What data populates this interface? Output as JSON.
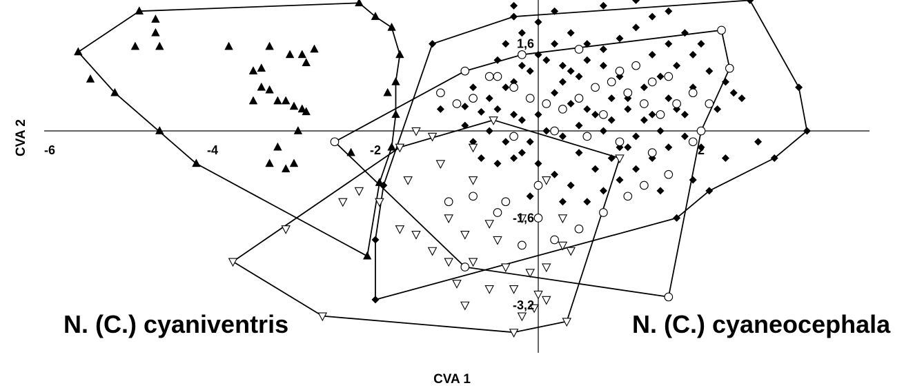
{
  "chart_data": {
    "type": "scatter",
    "xlabel": "CVA 1",
    "ylabel": "CVA 2",
    "xticks": [
      {
        "value": -6,
        "label": "-6"
      },
      {
        "value": -4,
        "label": "-4"
      },
      {
        "value": -2,
        "label": "-2"
      },
      {
        "value": 2,
        "label": "2"
      }
    ],
    "yticks": [
      {
        "value": 1.6,
        "label": "1,6"
      },
      {
        "value": -1.6,
        "label": "-1,6"
      },
      {
        "value": -3.2,
        "label": "-3,2"
      }
    ],
    "xlim": [
      -6.0,
      4.0
    ],
    "ylim": [
      -4.6,
      4.7
    ],
    "annotations": [
      {
        "text": "N. (C.) cyaniventris"
      },
      {
        "text": "N. (C.) cyaneocephala"
      }
    ],
    "series": [
      {
        "marker": "triangle-filled",
        "color": "#000000",
        "hull": [
          [
            -5.65,
            1.45
          ],
          [
            -4.9,
            2.2
          ],
          [
            -2.2,
            2.35
          ],
          [
            -2.0,
            2.1
          ],
          [
            -1.8,
            1.9
          ],
          [
            -1.7,
            1.4
          ],
          [
            -1.75,
            0.9
          ],
          [
            -1.75,
            0.3
          ],
          [
            -1.8,
            -0.3
          ],
          [
            -1.95,
            -0.95
          ],
          [
            -2.1,
            -2.3
          ],
          [
            -4.2,
            -0.6
          ],
          [
            -5.2,
            0.7
          ]
        ],
        "points": [
          [
            -5.65,
            1.45
          ],
          [
            -4.9,
            2.2
          ],
          [
            -2.2,
            2.35
          ],
          [
            -2.0,
            2.1
          ],
          [
            -1.8,
            1.9
          ],
          [
            -1.7,
            1.4
          ],
          [
            -1.75,
            0.9
          ],
          [
            -1.75,
            0.3
          ],
          [
            -1.8,
            -0.3
          ],
          [
            -1.95,
            -0.95
          ],
          [
            -2.1,
            -2.3
          ],
          [
            -4.2,
            -0.6
          ],
          [
            -5.2,
            0.7
          ],
          [
            -4.7,
            2.05
          ],
          [
            -4.7,
            1.8
          ],
          [
            -4.65,
            1.55
          ],
          [
            -4.95,
            1.55
          ],
          [
            -4.65,
            0.0
          ],
          [
            -5.5,
            0.95
          ],
          [
            -3.8,
            1.55
          ],
          [
            -3.3,
            1.55
          ],
          [
            -3.4,
            1.15
          ],
          [
            -3.05,
            1.4
          ],
          [
            -2.9,
            1.4
          ],
          [
            -2.85,
            1.25
          ],
          [
            -2.75,
            1.5
          ],
          [
            -3.5,
            1.1
          ],
          [
            -3.4,
            0.8
          ],
          [
            -3.3,
            0.75
          ],
          [
            -3.2,
            0.55
          ],
          [
            -3.1,
            0.55
          ],
          [
            -3.5,
            0.55
          ],
          [
            -3.0,
            0.45
          ],
          [
            -2.9,
            0.4
          ],
          [
            -2.85,
            0.35
          ],
          [
            -2.95,
            0.0
          ],
          [
            -3.2,
            -0.3
          ],
          [
            -3.3,
            -0.6
          ],
          [
            -3.0,
            -0.6
          ],
          [
            -2.3,
            -0.4
          ],
          [
            -1.85,
            0.7
          ],
          [
            -3.1,
            -0.7
          ]
        ]
      },
      {
        "marker": "diamond-filled",
        "color": "#000000",
        "hull": [
          [
            -1.3,
            1.6
          ],
          [
            -0.3,
            2.1
          ],
          [
            2.6,
            2.4
          ],
          [
            3.2,
            0.8
          ],
          [
            3.3,
            0.0
          ],
          [
            2.9,
            -0.5
          ],
          [
            2.1,
            -1.1
          ],
          [
            1.7,
            -1.6
          ],
          [
            -2.0,
            -3.1
          ],
          [
            -2.0,
            -2.0
          ],
          [
            -1.9,
            -1.0
          ]
        ],
        "points": [
          [
            -1.3,
            1.6
          ],
          [
            -0.3,
            2.1
          ],
          [
            2.6,
            2.4
          ],
          [
            3.2,
            0.8
          ],
          [
            3.3,
            0.0
          ],
          [
            2.9,
            -0.5
          ],
          [
            2.1,
            -1.1
          ],
          [
            1.7,
            -1.6
          ],
          [
            -2.0,
            -3.1
          ],
          [
            -2.0,
            -2.0
          ],
          [
            -1.9,
            -1.0
          ],
          [
            -0.9,
            0.45
          ],
          [
            -0.7,
            0.35
          ],
          [
            -0.5,
            0.4
          ],
          [
            -0.3,
            0.3
          ],
          [
            -0.2,
            0.2
          ],
          [
            0.0,
            0.3
          ],
          [
            0.1,
            0.5
          ],
          [
            0.2,
            0.7
          ],
          [
            0.3,
            0.9
          ],
          [
            0.4,
            1.1
          ],
          [
            0.6,
            1.3
          ],
          [
            0.8,
            1.5
          ],
          [
            1.0,
            1.7
          ],
          [
            1.2,
            1.9
          ],
          [
            1.4,
            2.1
          ],
          [
            1.6,
            2.2
          ],
          [
            0.0,
            2.0
          ],
          [
            -0.2,
            1.8
          ],
          [
            -0.4,
            1.6
          ],
          [
            -0.5,
            1.3
          ],
          [
            -0.6,
            1.0
          ],
          [
            -0.3,
            0.9
          ],
          [
            -0.1,
            1.1
          ],
          [
            0.1,
            1.3
          ],
          [
            0.3,
            1.2
          ],
          [
            0.5,
            1.0
          ],
          [
            0.7,
            0.8
          ],
          [
            0.9,
            0.6
          ],
          [
            1.1,
            0.4
          ],
          [
            1.3,
            0.2
          ],
          [
            1.5,
            0.0
          ],
          [
            1.7,
            0.4
          ],
          [
            1.9,
            0.8
          ],
          [
            2.1,
            1.1
          ],
          [
            2.3,
            0.9
          ],
          [
            2.5,
            0.6
          ],
          [
            2.7,
            -0.2
          ],
          [
            2.3,
            -0.5
          ],
          [
            2.0,
            -0.3
          ],
          [
            1.8,
            -0.1
          ],
          [
            1.6,
            -0.3
          ],
          [
            1.4,
            -0.5
          ],
          [
            1.2,
            -0.7
          ],
          [
            1.0,
            -0.9
          ],
          [
            0.8,
            -1.1
          ],
          [
            0.6,
            -1.3
          ],
          [
            0.4,
            -1.0
          ],
          [
            0.2,
            -0.8
          ],
          [
            0.0,
            -0.6
          ],
          [
            -0.2,
            -0.4
          ],
          [
            -0.4,
            -0.2
          ],
          [
            -0.6,
            0.0
          ],
          [
            -0.8,
            -0.2
          ],
          [
            -0.7,
            -0.5
          ],
          [
            -0.5,
            -0.6
          ],
          [
            -0.3,
            -0.5
          ],
          [
            -0.1,
            -0.2
          ],
          [
            0.1,
            0.0
          ],
          [
            0.3,
            -0.1
          ],
          [
            0.5,
            0.1
          ],
          [
            0.7,
            0.3
          ],
          [
            0.9,
            0.2
          ],
          [
            1.1,
            0.6
          ],
          [
            1.3,
            0.8
          ],
          [
            1.5,
            1.0
          ],
          [
            1.7,
            1.2
          ],
          [
            1.9,
            1.4
          ],
          [
            2.0,
            1.6
          ],
          [
            1.8,
            1.8
          ],
          [
            1.6,
            1.6
          ],
          [
            1.4,
            1.4
          ],
          [
            1.2,
            1.2
          ],
          [
            1.0,
            1.0
          ],
          [
            0.8,
            1.2
          ],
          [
            0.6,
            1.6
          ],
          [
            0.4,
            1.8
          ],
          [
            0.2,
            1.6
          ],
          [
            0.0,
            1.4
          ],
          [
            -0.2,
            1.2
          ],
          [
            -0.4,
            0.8
          ],
          [
            -0.6,
            0.6
          ],
          [
            -0.8,
            0.8
          ],
          [
            -1.0,
            0.5
          ],
          [
            -1.2,
            0.4
          ],
          [
            -0.9,
            0.1
          ],
          [
            1.0,
            -0.3
          ],
          [
            1.2,
            -0.1
          ],
          [
            1.4,
            0.3
          ],
          [
            1.6,
            0.6
          ],
          [
            1.8,
            0.3
          ],
          [
            2.0,
            0.0
          ],
          [
            2.2,
            0.4
          ],
          [
            2.4,
            0.7
          ],
          [
            0.5,
            -0.4
          ],
          [
            0.7,
            -0.7
          ],
          [
            0.9,
            -0.5
          ],
          [
            1.1,
            -0.3
          ],
          [
            -0.3,
            2.3
          ],
          [
            0.2,
            2.2
          ],
          [
            0.8,
            2.3
          ],
          [
            1.2,
            2.4
          ],
          [
            -0.1,
            -1.2
          ],
          [
            0.3,
            -1.3
          ],
          [
            1.5,
            -1.1
          ],
          [
            1.9,
            -0.9
          ],
          [
            0.4,
            0.5
          ],
          [
            0.6,
            0.4
          ],
          [
            0.8,
            0.0
          ],
          [
            1.3,
            0.5
          ]
        ]
      },
      {
        "marker": "circle-open",
        "color": "#000000",
        "hull": [
          [
            -2.5,
            -0.2
          ],
          [
            -0.9,
            1.1
          ],
          [
            -0.2,
            1.4
          ],
          [
            2.25,
            1.85
          ],
          [
            2.35,
            1.15
          ],
          [
            2.0,
            0.0
          ],
          [
            1.6,
            -3.05
          ],
          [
            -0.9,
            -2.5
          ]
        ],
        "points": [
          [
            -2.5,
            -0.2
          ],
          [
            -0.9,
            1.1
          ],
          [
            -0.2,
            1.4
          ],
          [
            2.25,
            1.85
          ],
          [
            2.35,
            1.15
          ],
          [
            2.0,
            0.0
          ],
          [
            1.6,
            -3.05
          ],
          [
            -0.9,
            -2.5
          ],
          [
            -0.5,
            1.0
          ],
          [
            -0.3,
            0.8
          ],
          [
            0.1,
            0.5
          ],
          [
            0.3,
            0.4
          ],
          [
            0.5,
            0.6
          ],
          [
            0.7,
            0.8
          ],
          [
            0.9,
            0.9
          ],
          [
            1.1,
            0.7
          ],
          [
            1.3,
            0.5
          ],
          [
            1.5,
            0.3
          ],
          [
            1.7,
            0.5
          ],
          [
            1.9,
            0.7
          ],
          [
            2.1,
            0.5
          ],
          [
            0.2,
            0.0
          ],
          [
            0.6,
            -0.1
          ],
          [
            1.0,
            -0.2
          ],
          [
            1.4,
            -0.4
          ],
          [
            1.6,
            -0.8
          ],
          [
            1.3,
            -1.0
          ],
          [
            1.1,
            -1.2
          ],
          [
            0.8,
            -1.5
          ],
          [
            0.5,
            -1.8
          ],
          [
            0.2,
            -2.0
          ],
          [
            -0.2,
            -2.1
          ],
          [
            -0.5,
            -1.5
          ],
          [
            -0.8,
            -1.2
          ],
          [
            -1.1,
            -1.3
          ],
          [
            -1.0,
            0.5
          ],
          [
            -0.8,
            0.6
          ],
          [
            -0.6,
            1.0
          ],
          [
            0.5,
            1.5
          ],
          [
            1.0,
            1.1
          ],
          [
            1.2,
            1.2
          ],
          [
            1.4,
            0.9
          ],
          [
            1.6,
            1.0
          ],
          [
            0.0,
            -1.0
          ],
          [
            -0.4,
            -1.3
          ],
          [
            -0.3,
            -0.1
          ],
          [
            0.0,
            -1.6
          ],
          [
            -1.2,
            0.7
          ],
          [
            1.9,
            -0.2
          ],
          [
            -0.1,
            0.6
          ],
          [
            0.8,
            0.3
          ]
        ]
      },
      {
        "marker": "triangle-open",
        "color": "#000000",
        "hull": [
          [
            -3.75,
            -2.4
          ],
          [
            -1.7,
            -0.3
          ],
          [
            -0.55,
            0.2
          ],
          [
            1.0,
            -0.5
          ],
          [
            0.35,
            -3.5
          ],
          [
            -0.3,
            -3.7
          ],
          [
            -2.65,
            -3.4
          ]
        ],
        "points": [
          [
            -3.75,
            -2.4
          ],
          [
            -1.7,
            -0.3
          ],
          [
            -0.55,
            0.2
          ],
          [
            1.0,
            -0.5
          ],
          [
            0.35,
            -3.5
          ],
          [
            -0.3,
            -3.7
          ],
          [
            -2.65,
            -3.4
          ],
          [
            -1.5,
            0.0
          ],
          [
            -1.3,
            -0.1
          ],
          [
            -0.8,
            -0.3
          ],
          [
            -1.2,
            -0.6
          ],
          [
            -0.8,
            -0.9
          ],
          [
            -1.6,
            -0.9
          ],
          [
            -2.4,
            -1.3
          ],
          [
            -1.95,
            -1.3
          ],
          [
            -2.2,
            -1.1
          ],
          [
            -3.1,
            -1.8
          ],
          [
            -1.7,
            -1.8
          ],
          [
            -1.5,
            -1.9
          ],
          [
            -1.1,
            -1.6
          ],
          [
            -0.9,
            -1.9
          ],
          [
            -1.3,
            -2.2
          ],
          [
            -1.1,
            -2.4
          ],
          [
            -0.8,
            -2.4
          ],
          [
            -0.4,
            -2.5
          ],
          [
            -0.1,
            -2.6
          ],
          [
            0.1,
            -2.5
          ],
          [
            -0.3,
            -2.9
          ],
          [
            -0.6,
            -2.9
          ],
          [
            0.0,
            -3.0
          ],
          [
            0.1,
            -3.1
          ],
          [
            -0.9,
            -3.2
          ],
          [
            -0.05,
            -3.25
          ],
          [
            0.4,
            -2.2
          ],
          [
            0.3,
            -2.1
          ],
          [
            -0.6,
            -1.7
          ],
          [
            -0.5,
            -2.0
          ],
          [
            -0.2,
            -1.6
          ],
          [
            0.3,
            -1.6
          ],
          [
            0.1,
            -0.9
          ],
          [
            -1.0,
            -2.8
          ],
          [
            -0.2,
            -3.4
          ]
        ]
      }
    ]
  }
}
